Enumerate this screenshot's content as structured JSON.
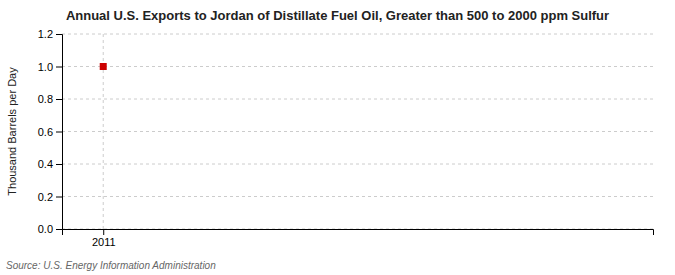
{
  "chart_data": {
    "type": "scatter",
    "title": "Annual U.S. Exports to Jordan of Distillate Fuel Oil, Greater than 500 to 2000 ppm Sulfur",
    "ylabel": "Thousand Barrels per Day",
    "source": "Source: U.S. Energy Information Administration",
    "x": [
      2011
    ],
    "values": [
      1.0
    ],
    "xlim": [
      2010.7,
      2015.0
    ],
    "ylim": [
      0.0,
      1.2
    ],
    "xticks": [
      2011
    ],
    "yticks": [
      {
        "value": 0.0,
        "label": "0.0"
      },
      0.2,
      0.4,
      0.6,
      0.8,
      {
        "value": 1.0,
        "label": "1.0"
      },
      1.2
    ],
    "grid": true,
    "color": "#cc0000",
    "marker": "square"
  }
}
